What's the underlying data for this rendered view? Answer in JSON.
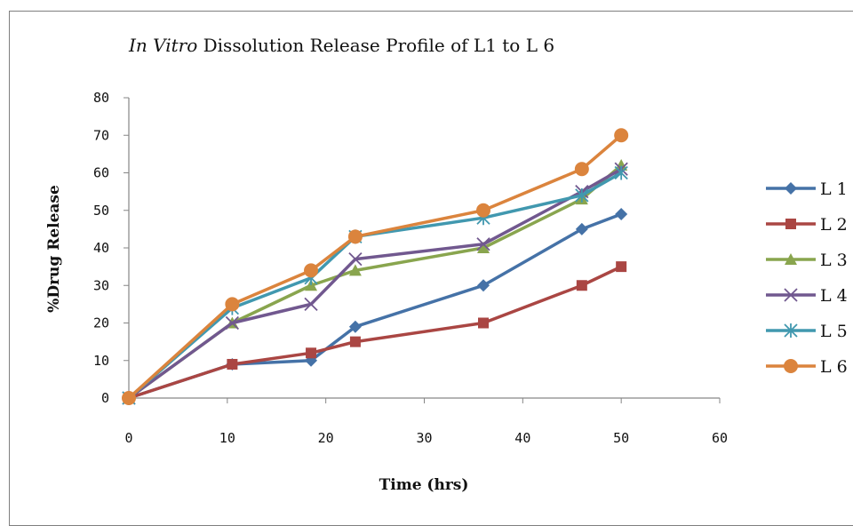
{
  "chart_data": {
    "type": "line",
    "title_italic": "In Vitro",
    "title_rest": " Dissolution Release Profile of L1 to L 6",
    "xlabel": "Time (hrs)",
    "ylabel": "%Drug Release",
    "xlim": [
      0,
      60
    ],
    "ylim": [
      0,
      80
    ],
    "xticks": [
      0,
      10,
      20,
      30,
      40,
      50,
      60
    ],
    "yticks": [
      0,
      10,
      20,
      30,
      40,
      50,
      60,
      70,
      80
    ],
    "grid": false,
    "legend_position": "right",
    "x": [
      0,
      10.5,
      18.5,
      23,
      36,
      46,
      50
    ],
    "series": [
      {
        "name": "L 1",
        "color": "#4572A7",
        "marker": "diamond",
        "values": [
          0,
          9,
          10,
          19,
          30,
          45,
          49
        ]
      },
      {
        "name": "L 2",
        "color": "#AA4643",
        "marker": "square",
        "values": [
          0,
          9,
          12,
          15,
          20,
          30,
          35
        ]
      },
      {
        "name": "L 3",
        "color": "#89A54E",
        "marker": "triangle",
        "values": [
          0,
          20,
          30,
          34,
          40,
          53,
          62
        ]
      },
      {
        "name": "L 4",
        "color": "#71588F",
        "marker": "x",
        "values": [
          0,
          20,
          25,
          37,
          41,
          55,
          61
        ]
      },
      {
        "name": "L 5",
        "color": "#4198AF",
        "marker": "asterisk",
        "values": [
          0,
          24,
          32,
          43,
          48,
          54,
          60
        ]
      },
      {
        "name": "L 6",
        "color": "#DB843D",
        "marker": "circle",
        "values": [
          0,
          25,
          34,
          43,
          50,
          61,
          70
        ]
      }
    ]
  }
}
